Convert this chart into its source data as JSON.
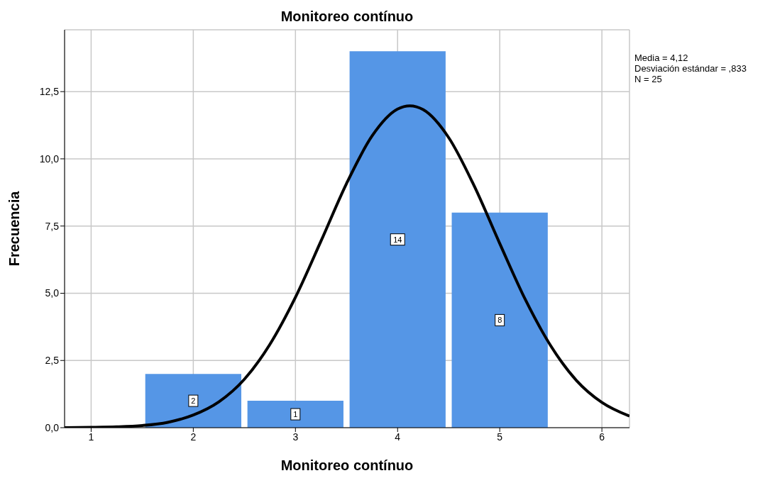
{
  "chart_data": {
    "type": "histogram",
    "title": "Monitoreo contínuo",
    "xlabel": "Monitoreo contínuo",
    "ylabel": "Frecuencia",
    "annotations": [
      "Media = 4,12",
      "Desviación estándar = ,833",
      "N = 25"
    ],
    "bins": [
      1.5,
      2.5,
      3.5,
      4.5,
      5.5
    ],
    "values": [
      2,
      1,
      14,
      8
    ],
    "color": "#5596e6",
    "value_labels": [
      "2",
      "1",
      "14",
      "8"
    ],
    "series": [
      {
        "type": "line",
        "color": "#000000",
        "x": [
          0.74,
          1.0,
          1.25,
          1.5,
          1.75,
          2.0,
          2.25,
          2.5,
          2.75,
          3.0,
          3.25,
          3.5,
          3.75,
          4.0,
          4.12,
          4.25,
          4.5,
          4.75,
          5.0,
          5.25,
          5.5,
          5.75,
          6.0,
          6.27
        ],
        "values": [
          0.0,
          0.01,
          0.03,
          0.08,
          0.2,
          0.47,
          0.96,
          1.8,
          3.1,
          4.85,
          6.94,
          9.08,
          10.85,
          11.85,
          11.97,
          11.83,
          10.79,
          8.99,
          6.85,
          4.77,
          3.04,
          1.76,
          0.94,
          0.43
        ]
      }
    ],
    "xlim": [
      0.74,
      6.27
    ],
    "xticks": [
      1,
      2,
      3,
      4,
      5,
      6
    ],
    "ylim": [
      0,
      14.8
    ],
    "yticks": [
      {
        "value": 0,
        "label": "0,0"
      },
      {
        "value": 2.5,
        "label": "2,5"
      },
      {
        "value": 5,
        "label": "5,0"
      },
      {
        "value": 7.5,
        "label": "7,5"
      },
      {
        "value": 10,
        "label": "10,0"
      },
      {
        "value": 12.5,
        "label": "12,5"
      }
    ],
    "grid": true,
    "marker": "none"
  }
}
